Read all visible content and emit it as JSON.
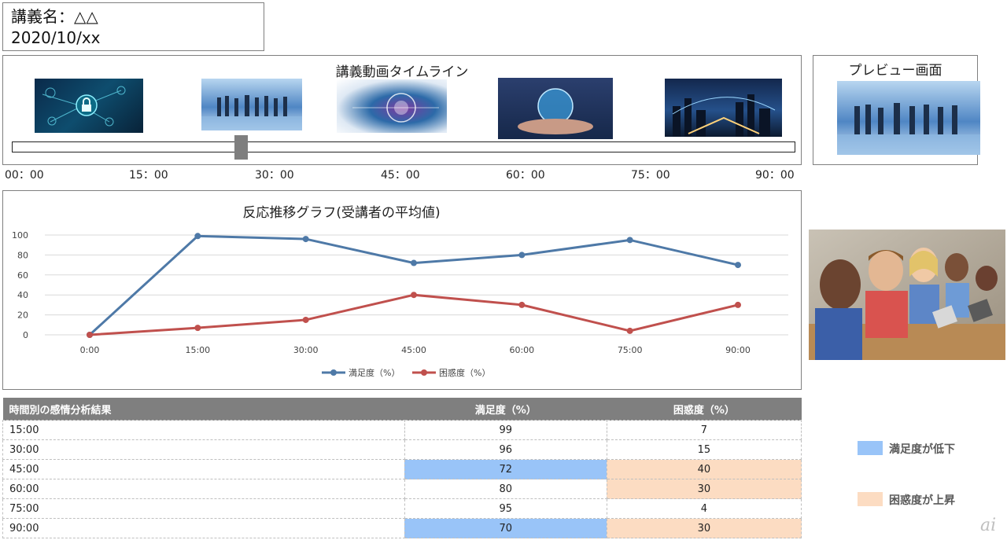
{
  "header": {
    "course_name": "講義名：△△",
    "date": "2020/10/xx"
  },
  "timeline": {
    "title": "講義動画タイムライン",
    "time_labels": [
      "00：00",
      "15：00",
      "30：00",
      "45：00",
      "60：00",
      "75：00",
      "90：00"
    ],
    "handle_position": "22:30"
  },
  "preview": {
    "title": "プレビュー画面"
  },
  "chart_data": {
    "type": "line",
    "title": "反応推移グラフ(受講者の平均値)",
    "x": [
      "0:00",
      "15:00",
      "30:00",
      "45:00",
      "60:00",
      "75:00",
      "90:00"
    ],
    "yticks": [
      "0",
      "20",
      "40",
      "60",
      "80",
      "100"
    ],
    "ylim": [
      0,
      100
    ],
    "grid": true,
    "legend_position": "bottom",
    "series": [
      {
        "name": "満足度（%）",
        "color": "#4e79a7",
        "values": [
          0,
          99,
          96,
          72,
          80,
          95,
          70
        ]
      },
      {
        "name": "困惑度（%）",
        "color": "#c0504d",
        "values": [
          0,
          7,
          15,
          40,
          30,
          4,
          30
        ]
      }
    ]
  },
  "table": {
    "headers": [
      "時間別の感情分析結果",
      "満足度（%）",
      "困惑度（%）"
    ],
    "rows": [
      {
        "time": "15:00",
        "satisfaction": "99",
        "confusion": "7",
        "sat_low": false,
        "conf_up": false
      },
      {
        "time": "30:00",
        "satisfaction": "96",
        "confusion": "15",
        "sat_low": false,
        "conf_up": false
      },
      {
        "time": "45:00",
        "satisfaction": "72",
        "confusion": "40",
        "sat_low": true,
        "conf_up": true
      },
      {
        "time": "60:00",
        "satisfaction": "80",
        "confusion": "30",
        "sat_low": false,
        "conf_up": true
      },
      {
        "time": "75:00",
        "satisfaction": "95",
        "confusion": "4",
        "sat_low": false,
        "conf_up": false
      },
      {
        "time": "90:00",
        "satisfaction": "70",
        "confusion": "30",
        "sat_low": true,
        "conf_up": true
      }
    ]
  },
  "legend": {
    "items": [
      {
        "label": "満足度が低下",
        "color": "#99c4f8"
      },
      {
        "label": "困惑度が上昇",
        "color": "#fcdcc2"
      }
    ]
  },
  "watermark": "ai"
}
